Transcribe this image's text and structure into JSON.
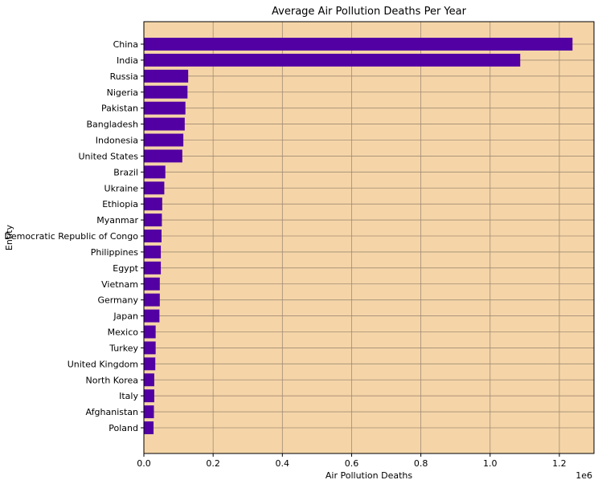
{
  "chart_data": {
    "type": "bar",
    "orientation": "horizontal",
    "title": "Average Air Pollution Deaths Per Year",
    "xlabel": "Air Pollution Deaths",
    "ylabel": "Entity",
    "x_scale_label": "1e6",
    "xlim": [
      0,
      1.3
    ],
    "xticks": [
      0.0,
      0.2,
      0.4,
      0.6,
      0.8,
      1.0,
      1.2
    ],
    "xtick_labels": [
      "0.0",
      "0.2",
      "0.4",
      "0.6",
      "0.8",
      "1.0",
      "1.2"
    ],
    "grid": true,
    "categories": [
      "China",
      "India",
      "Russia",
      "Nigeria",
      "Pakistan",
      "Bangladesh",
      "Indonesia",
      "United States",
      "Brazil",
      "Ukraine",
      "Ethiopia",
      "Myanmar",
      "Democratic Republic of Congo",
      "Philippines",
      "Egypt",
      "Vietnam",
      "Germany",
      "Japan",
      "Mexico",
      "Turkey",
      "United Kingdom",
      "North Korea",
      "Italy",
      "Afghanistan",
      "Poland"
    ],
    "values": [
      1.238,
      1.087,
      0.128,
      0.126,
      0.12,
      0.118,
      0.114,
      0.111,
      0.062,
      0.059,
      0.053,
      0.052,
      0.051,
      0.049,
      0.049,
      0.046,
      0.046,
      0.045,
      0.034,
      0.034,
      0.033,
      0.03,
      0.03,
      0.029,
      0.028
    ]
  },
  "colors": {
    "bar": "#5200a3",
    "plot_background": "#f5d5a8",
    "grid": "#a08b73",
    "axes": "#000000"
  }
}
